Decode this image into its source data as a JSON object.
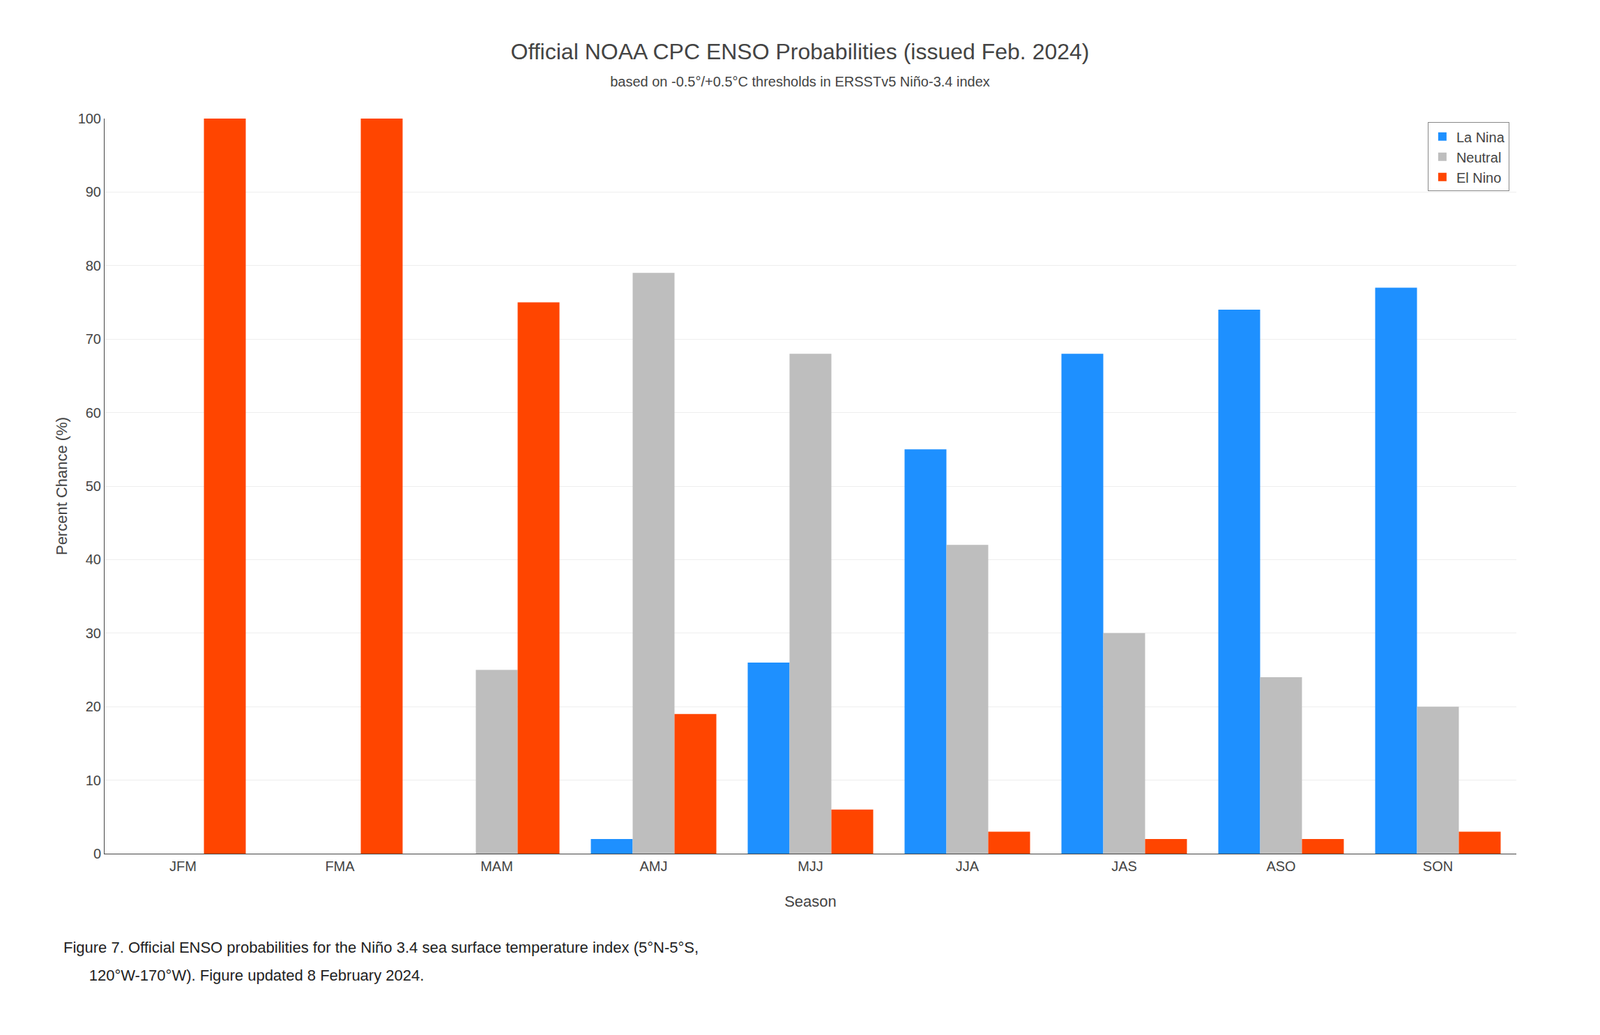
{
  "chart_data": {
    "type": "bar",
    "title": "Official NOAA CPC ENSO Probabilities (issued Feb. 2024)",
    "subtitle": "based on -0.5°/+0.5°C thresholds in ERSSTv5 Niño-3.4 index",
    "xlabel": "Season",
    "ylabel": "Percent Chance (%)",
    "categories": [
      "JFM",
      "FMA",
      "MAM",
      "AMJ",
      "MJJ",
      "JJA",
      "JAS",
      "ASO",
      "SON"
    ],
    "series": [
      {
        "name": "La Nina",
        "color": "#1E90FF",
        "values": [
          0,
          0,
          0,
          2,
          26,
          55,
          68,
          74,
          77
        ]
      },
      {
        "name": "Neutral",
        "color": "#BEBEBE",
        "values": [
          0,
          0,
          25,
          79,
          68,
          42,
          30,
          24,
          20
        ]
      },
      {
        "name": "El Nino",
        "color": "#FF4500",
        "values": [
          100,
          100,
          75,
          19,
          6,
          3,
          2,
          2,
          3
        ]
      }
    ],
    "ylim": [
      0,
      100
    ],
    "yticks": [
      0,
      10,
      20,
      30,
      40,
      50,
      60,
      70,
      80,
      90,
      100
    ],
    "grid": true,
    "legend": "upper right",
    "annotations": [
      "Figure 7. Official ENSO probabilities for the Niño 3.4 sea surface temperature index (5°N-5°S,",
      "      120°W-170°W). Figure updated 8 February 2024."
    ]
  }
}
